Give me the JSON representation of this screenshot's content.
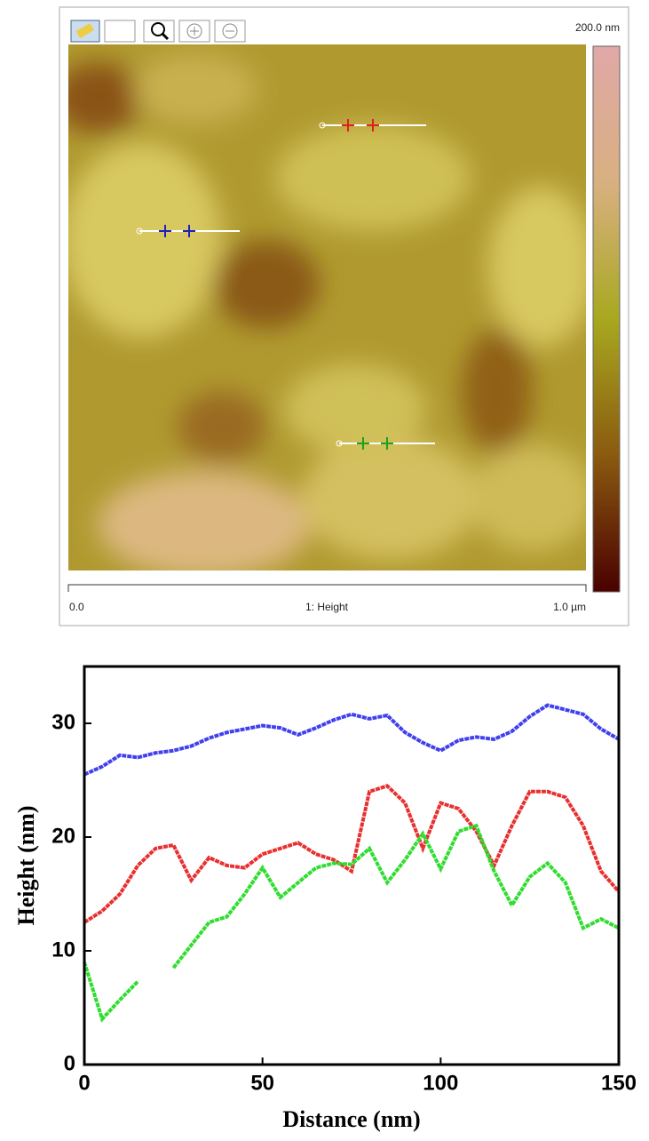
{
  "afm_panel": {
    "scale_max": "200.0 nm",
    "x_start": "0.0",
    "channel": "1: Height",
    "x_end": "1.0 µm"
  },
  "chart_data": {
    "type": "line",
    "x_label": "Distance (nm)",
    "y_label": "Height (nm)",
    "x": [
      0,
      5,
      10,
      15,
      20,
      25,
      30,
      35,
      40,
      45,
      50,
      55,
      60,
      65,
      70,
      75,
      80,
      85,
      90,
      95,
      100,
      105,
      110,
      115,
      120,
      125,
      130,
      135,
      140,
      145,
      150
    ],
    "series": [
      {
        "color": "#4040ee",
        "values": [
          25.5,
          26.2,
          27.2,
          27,
          27.4,
          27.6,
          28,
          28.7,
          29.2,
          29.5,
          29.8,
          29.6,
          29,
          29.6,
          30.3,
          30.8,
          30.4,
          30.7,
          29.2,
          28.3,
          27.6,
          28.5,
          28.8,
          28.6,
          29.3,
          30.6,
          31.6,
          31.2,
          30.8,
          29.5,
          28.6
        ]
      },
      {
        "color": "#e83030",
        "values": [
          12.5,
          13.5,
          15,
          17.5,
          19,
          19.3,
          16.2,
          18.2,
          17.5,
          17.3,
          18.5,
          19,
          19.5,
          18.5,
          18,
          17,
          24,
          24.5,
          23,
          19,
          23,
          22.5,
          20.5,
          17.5,
          21,
          24,
          24,
          23.5,
          21,
          17,
          15.2
        ]
      },
      {
        "color": "#30dd30",
        "values": [
          9,
          4,
          5.7,
          7.3,
          null,
          8.5,
          10.5,
          12.5,
          13,
          15,
          17.3,
          14.7,
          16,
          17.3,
          17.7,
          17.6,
          19,
          16,
          18,
          20.3,
          17.2,
          20.5,
          21,
          17,
          14,
          16.5,
          17.7,
          16,
          12,
          12.8,
          12
        ]
      }
    ],
    "xlim": [
      0,
      150
    ],
    "ylim": [
      0,
      35
    ],
    "xticks": [
      0,
      50,
      100,
      150
    ],
    "yticks": [
      0,
      10,
      20,
      30
    ]
  }
}
